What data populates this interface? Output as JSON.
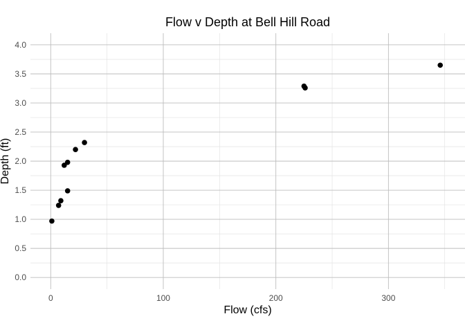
{
  "chart_data": {
    "type": "scatter",
    "title": "Flow v Depth at Bell Hill Road",
    "xlabel": "Flow (cfs)",
    "ylabel": "Depth (ft)",
    "xlim": [
      -18,
      368
    ],
    "ylim": [
      -0.2,
      4.2
    ],
    "x_ticks": [
      0,
      100,
      200,
      300
    ],
    "y_ticks": [
      0.0,
      0.5,
      1.0,
      1.5,
      2.0,
      2.5,
      3.0,
      3.5,
      4.0
    ],
    "x_tick_labels": [
      "0",
      "100",
      "200",
      "300"
    ],
    "y_tick_labels": [
      "0.0",
      "0.5",
      "1.0",
      "1.5",
      "2.0",
      "2.5",
      "3.0",
      "3.5",
      "4.0"
    ],
    "grid": true,
    "points": [
      {
        "x": 1,
        "y": 0.97
      },
      {
        "x": 7,
        "y": 1.24
      },
      {
        "x": 9,
        "y": 1.32
      },
      {
        "x": 12,
        "y": 1.93
      },
      {
        "x": 15,
        "y": 1.49
      },
      {
        "x": 15,
        "y": 1.98
      },
      {
        "x": 22,
        "y": 2.2
      },
      {
        "x": 30,
        "y": 2.32
      },
      {
        "x": 225,
        "y": 3.29
      },
      {
        "x": 226,
        "y": 3.26
      },
      {
        "x": 346,
        "y": 3.65
      }
    ]
  }
}
